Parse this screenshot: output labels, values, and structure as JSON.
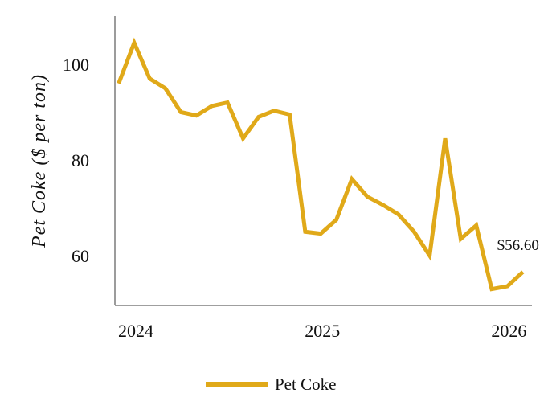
{
  "chart_data": {
    "type": "line",
    "title": "",
    "xlabel": "",
    "ylabel": "Pet Coke ($ per ton)",
    "x_ticks": [
      "2024",
      "2025",
      "2026"
    ],
    "y_ticks": [
      60,
      80,
      100
    ],
    "xlim": [
      "2023-12",
      "2026-02"
    ],
    "ylim": [
      50,
      110
    ],
    "grid": false,
    "legend": {
      "position": "bottom-center"
    },
    "series": [
      {
        "name": "Pet Coke",
        "color": "#E0A919",
        "x": [
          "2023-12",
          "2024-01",
          "2024-02",
          "2024-03",
          "2024-04",
          "2024-05",
          "2024-06",
          "2024-07",
          "2024-08",
          "2024-09",
          "2024-10",
          "2024-11",
          "2024-12",
          "2025-01",
          "2025-02",
          "2025-03",
          "2025-04",
          "2025-05",
          "2025-06",
          "2025-07",
          "2025-08",
          "2025-09",
          "2025-10",
          "2025-11",
          "2025-12",
          "2026-01",
          "2026-02"
        ],
        "values": [
          96,
          104.5,
          97,
          95,
          90,
          89.3,
          91.3,
          92,
          84.5,
          89,
          90.3,
          89.5,
          65,
          64.6,
          67.5,
          76,
          72.3,
          70.6,
          68.6,
          65,
          60,
          84.5,
          63.5,
          66.3,
          53,
          53.6,
          56.6
        ]
      }
    ],
    "annotations": [
      {
        "text": "$56.60",
        "series": "Pet Coke",
        "point": "last"
      }
    ]
  }
}
